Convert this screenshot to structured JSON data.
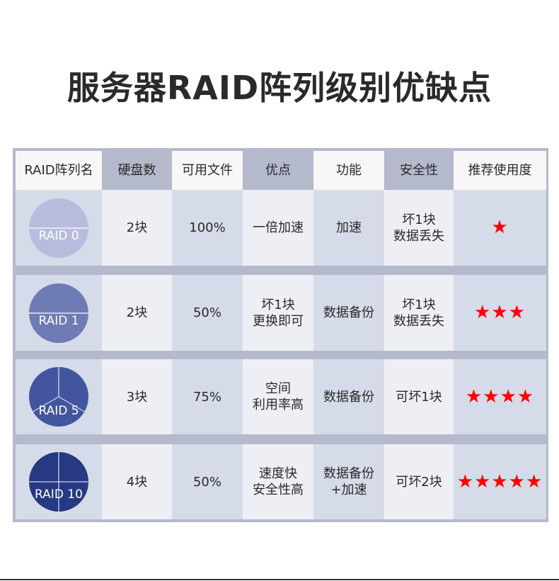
{
  "title": "服务器RAID阵列级别优缺点",
  "headers": [
    "RAID阵列名",
    "硬盘数",
    "可用文件",
    "优点",
    "功能",
    "安全性",
    "推荐使用度"
  ],
  "rows": [
    {
      "name": "RAID 0",
      "disks": "2块",
      "usable": "100%",
      "pros": "一倍加速",
      "function": "加速",
      "safety": "坏1块\n数据丢失",
      "rating": 1,
      "stars": "★",
      "color": "#b8bcdc"
    },
    {
      "name": "RAID 1",
      "disks": "2块",
      "usable": "50%",
      "pros": "坏1块\n更换即可",
      "function": "数据备份",
      "safety": "坏1块\n数据丢失",
      "rating": 3,
      "stars": "★★★",
      "color": "#6f7bb5"
    },
    {
      "name": "RAID 5",
      "disks": "3块",
      "usable": "75%",
      "pros": "空间\n利用率高",
      "function": "数据备份",
      "safety": "可坏1块",
      "rating": 4,
      "stars": "★★★★",
      "color": "#42559e"
    },
    {
      "name": "RAID 10",
      "disks": "4块",
      "usable": "50%",
      "pros": "速度快\n安全性高",
      "function": "数据备份\n+加速",
      "safety": "可坏2块",
      "rating": 5,
      "stars": "★★★★★",
      "color": "#263982"
    }
  ],
  "colors": {
    "frame": "#b4b9cc",
    "star": "#ff0000",
    "colA": "#d5dbe8",
    "colB": "#eeeff4"
  }
}
